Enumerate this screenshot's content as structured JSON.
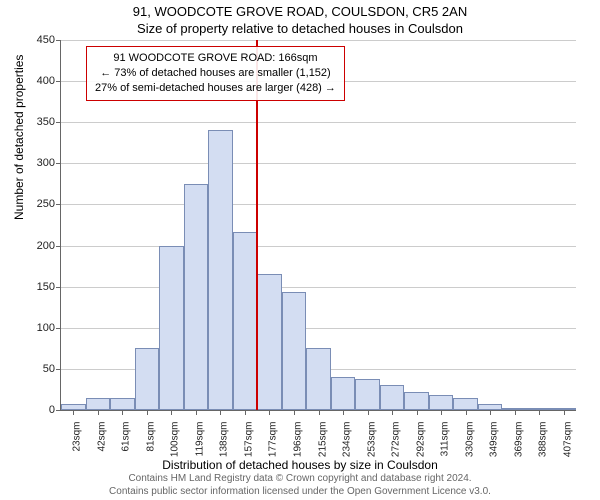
{
  "title": "91, WOODCOTE GROVE ROAD, COULSDON, CR5 2AN",
  "subtitle": "Size of property relative to detached houses in Coulsdon",
  "ylabel": "Number of detached properties",
  "xlabel": "Distribution of detached houses by size in Coulsdon",
  "footer_line1": "Contains HM Land Registry data © Crown copyright and database right 2024.",
  "footer_line2": "Contains public sector information licensed under the Open Government Licence v3.0.",
  "chart": {
    "type": "histogram",
    "ylim": [
      0,
      450
    ],
    "ytick_step": 50,
    "grid_color": "#cccccc",
    "bar_fill": "#d3ddf2",
    "bar_border": "#7a8db5",
    "background": "#ffffff",
    "reference_line": {
      "x_label": "166sqm",
      "color": "#cc0000"
    },
    "x_labels": [
      "23sqm",
      "42sqm",
      "61sqm",
      "81sqm",
      "100sqm",
      "119sqm",
      "138sqm",
      "157sqm",
      "177sqm",
      "196sqm",
      "215sqm",
      "234sqm",
      "253sqm",
      "272sqm",
      "292sqm",
      "311sqm",
      "330sqm",
      "349sqm",
      "369sqm",
      "388sqm",
      "407sqm"
    ],
    "values": [
      7,
      15,
      15,
      75,
      200,
      275,
      340,
      217,
      165,
      143,
      75,
      40,
      38,
      30,
      22,
      18,
      15,
      7,
      2,
      3,
      2
    ]
  },
  "annotation": {
    "line1": "91 WOODCOTE GROVE ROAD: 166sqm",
    "line2": "← 73% of detached houses are smaller (1,152)",
    "line3": "27% of semi-detached houses are larger (428) →",
    "border_color": "#cc0000"
  }
}
